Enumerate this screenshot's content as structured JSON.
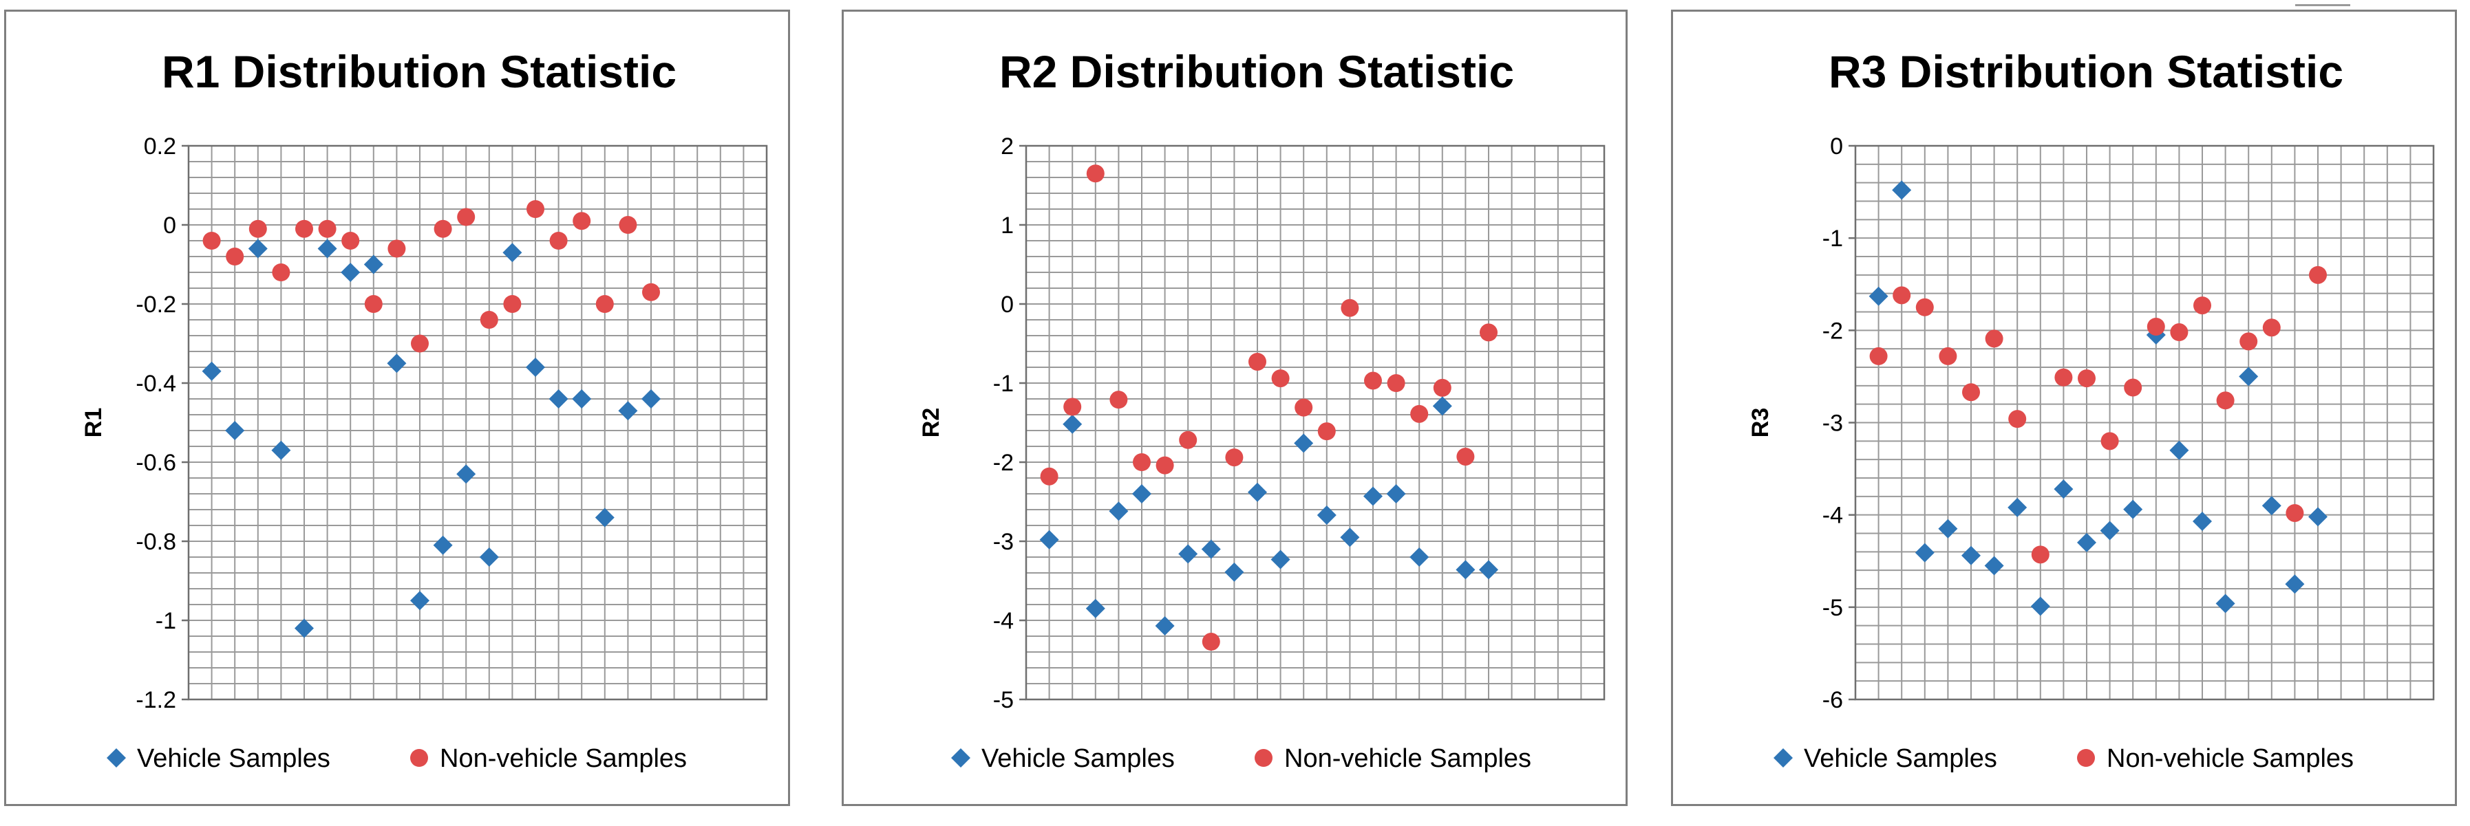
{
  "chart_data": [
    {
      "type": "scatter",
      "title": "R1 Distribution Statistic",
      "ylabel": "R1",
      "xlabel": "",
      "ylim": [
        -1.2,
        0.2
      ],
      "yticks": [
        0.2,
        0,
        -0.2,
        -0.4,
        -0.6,
        -0.8,
        -1,
        -1.2
      ],
      "ytick_labels": [
        "0.2",
        "0",
        "-0.2",
        "-0.4",
        "-0.6",
        "-0.8",
        "-1",
        "-1.2"
      ],
      "xlim": [
        0,
        25
      ],
      "grid": true,
      "legend_position": "bottom",
      "series": [
        {
          "name": "Vehicle Samples",
          "marker": "diamond",
          "color": "#2e75b6",
          "x": [
            1,
            2,
            3,
            4,
            5,
            6,
            7,
            8,
            9,
            10,
            11,
            12,
            13,
            14,
            15,
            16,
            17,
            18,
            19,
            20
          ],
          "y": [
            -0.37,
            -0.52,
            -0.06,
            -0.57,
            -1.02,
            -0.06,
            -0.12,
            -0.1,
            -0.35,
            -0.95,
            -0.81,
            -0.63,
            -0.84,
            -0.07,
            -0.36,
            -0.44,
            -0.44,
            -0.74,
            -0.47,
            -0.44
          ]
        },
        {
          "name": "Non-vehicle Samples",
          "marker": "circle",
          "color": "#e04b4b",
          "x": [
            1,
            2,
            3,
            4,
            5,
            6,
            7,
            8,
            9,
            10,
            11,
            12,
            13,
            14,
            15,
            16,
            17,
            18,
            19,
            20
          ],
          "y": [
            -0.04,
            -0.08,
            -0.01,
            -0.12,
            -0.01,
            -0.01,
            -0.04,
            -0.2,
            -0.06,
            -0.3,
            -0.01,
            0.02,
            -0.24,
            -0.2,
            0.04,
            -0.04,
            0.01,
            -0.2,
            0.0,
            -0.17
          ]
        }
      ]
    },
    {
      "type": "scatter",
      "title": "R2 Distribution Statistic",
      "ylabel": "R2",
      "xlabel": "",
      "ylim": [
        -5,
        2
      ],
      "yticks": [
        2,
        1,
        0,
        -1,
        -2,
        -3,
        -4,
        -5
      ],
      "ytick_labels": [
        "2",
        "1",
        "0",
        "-1",
        "-2",
        "-3",
        "-4",
        "-5"
      ],
      "xlim": [
        0,
        25
      ],
      "grid": true,
      "legend_position": "bottom",
      "series": [
        {
          "name": "Vehicle Samples",
          "marker": "diamond",
          "color": "#2e75b6",
          "x": [
            1,
            2,
            3,
            4,
            5,
            6,
            7,
            8,
            9,
            10,
            11,
            12,
            13,
            14,
            15,
            16,
            17,
            18,
            19,
            20
          ],
          "y": [
            -2.98,
            -1.52,
            -3.85,
            -2.62,
            -2.4,
            -4.07,
            -3.16,
            -3.1,
            -3.39,
            -2.38,
            -3.23,
            -1.76,
            -2.67,
            -2.95,
            -2.43,
            -2.4,
            -3.2,
            -1.29,
            -3.36,
            -3.36
          ]
        },
        {
          "name": "Non-vehicle Samples",
          "marker": "circle",
          "color": "#e04b4b",
          "x": [
            1,
            2,
            3,
            4,
            5,
            6,
            7,
            8,
            9,
            10,
            11,
            12,
            13,
            14,
            15,
            16,
            17,
            18,
            19,
            20
          ],
          "y": [
            -2.18,
            -1.3,
            1.65,
            -1.21,
            -2.0,
            -2.04,
            -1.72,
            -4.27,
            -1.94,
            -0.73,
            -0.94,
            -1.31,
            -1.61,
            -0.05,
            -0.97,
            -1.0,
            -1.39,
            -1.06,
            -1.93,
            -0.36
          ]
        }
      ]
    },
    {
      "type": "scatter",
      "title": "R3 Distribution Statistic",
      "ylabel": "R3",
      "xlabel": "",
      "ylim": [
        -6,
        0
      ],
      "yticks": [
        0,
        -1,
        -2,
        -3,
        -4,
        -5,
        -6
      ],
      "ytick_labels": [
        "0",
        "-1",
        "-2",
        "-3",
        "-4",
        "-5",
        "-6"
      ],
      "xlim": [
        0,
        25
      ],
      "grid": true,
      "legend_position": "bottom",
      "series": [
        {
          "name": "Vehicle Samples",
          "marker": "diamond",
          "color": "#2e75b6",
          "x": [
            1,
            2,
            3,
            4,
            5,
            6,
            7,
            8,
            9,
            10,
            11,
            12,
            13,
            14,
            15,
            16,
            17,
            18,
            19,
            20
          ],
          "y": [
            -1.63,
            -0.48,
            -4.41,
            -4.15,
            -4.44,
            -4.55,
            -3.92,
            -4.99,
            -3.72,
            -4.3,
            -4.17,
            -3.94,
            -2.05,
            -3.3,
            -4.07,
            -4.96,
            -2.5,
            -3.9,
            -4.75,
            -4.02
          ]
        },
        {
          "name": "Non-vehicle Samples",
          "marker": "circle",
          "color": "#e04b4b",
          "x": [
            1,
            2,
            3,
            4,
            5,
            6,
            7,
            8,
            9,
            10,
            11,
            12,
            13,
            14,
            15,
            16,
            17,
            18,
            19,
            20
          ],
          "y": [
            -2.28,
            -1.62,
            -1.75,
            -2.28,
            -2.67,
            -2.09,
            -2.96,
            -4.43,
            -2.51,
            -2.52,
            -3.2,
            -2.62,
            -1.96,
            -2.02,
            -1.73,
            -2.76,
            -2.12,
            -1.97,
            -3.98,
            -1.4
          ]
        }
      ]
    }
  ]
}
